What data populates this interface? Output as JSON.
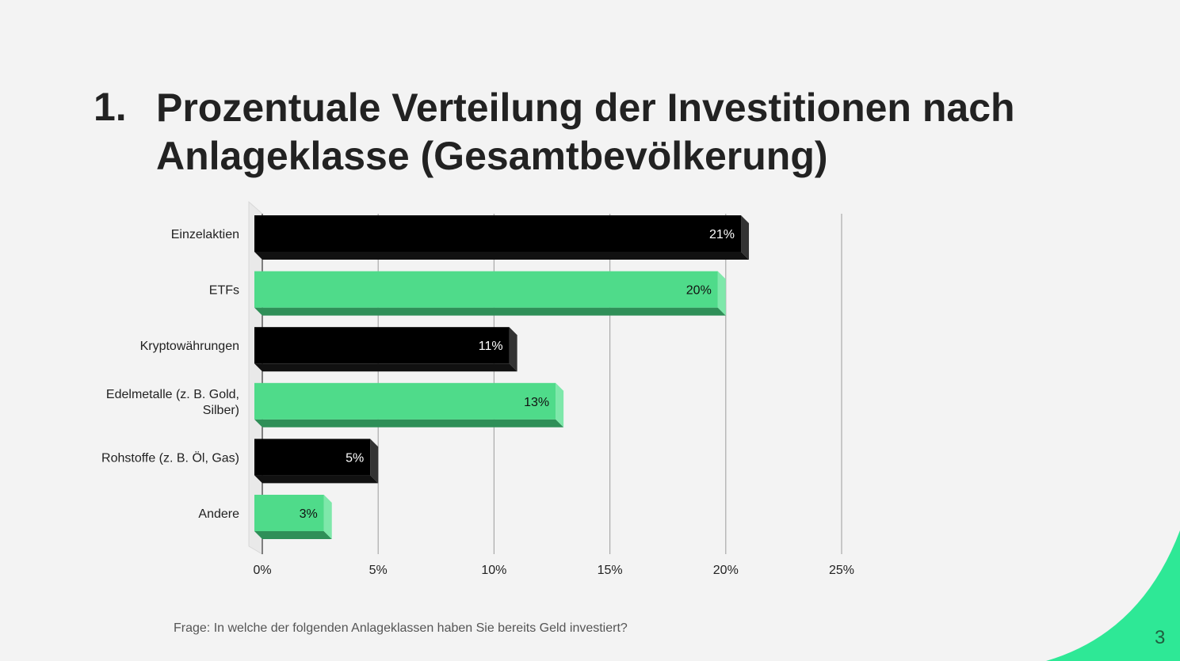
{
  "slide": {
    "number_label": "1.",
    "title": "Prozentuale Verteilung der Investitionen nach Anlageklasse (Gesamtbevölkerung)",
    "footnote": "Frage: In welche der folgenden Anlageklassen haben Sie bereits Geld investiert?",
    "page_number": "3",
    "accent_color": "#2ee896"
  },
  "chart_data": {
    "type": "bar",
    "orientation": "horizontal",
    "style": "3d",
    "categories": [
      [
        "Einzelaktien"
      ],
      [
        "ETFs"
      ],
      [
        "Kryptowährungen"
      ],
      [
        "Edelmetalle (z. B. Gold,",
        "Silber)"
      ],
      [
        "Rohstoffe (z. B. Öl, Gas)"
      ],
      [
        "Andere"
      ]
    ],
    "values": [
      21,
      20,
      11,
      13,
      5,
      3
    ],
    "data_labels": [
      "21%",
      "20%",
      "11%",
      "13%",
      "5%",
      "3%"
    ],
    "colors": [
      "#000000",
      "#4fdb8a",
      "#000000",
      "#4fdb8a",
      "#000000",
      "#4fdb8a"
    ],
    "xlim": [
      0,
      25
    ],
    "x_ticks": [
      "0%",
      "5%",
      "10%",
      "15%",
      "20%",
      "25%"
    ],
    "grid": true
  }
}
